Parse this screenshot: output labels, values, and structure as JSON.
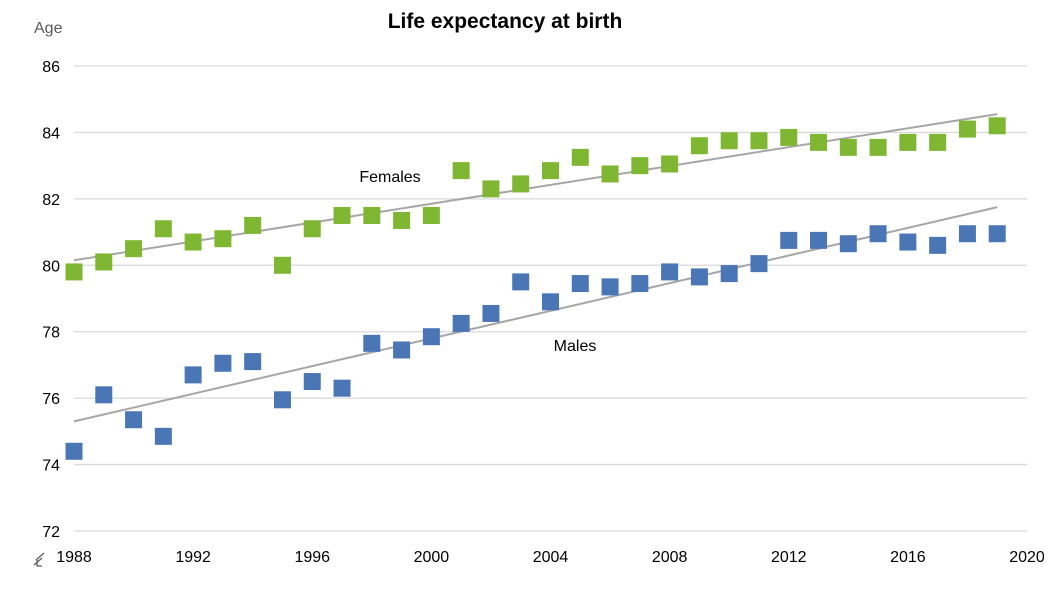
{
  "chart_data": {
    "type": "scatter",
    "title": "Life expectancy at birth",
    "ylabel": "Age",
    "xlabel": "",
    "xlim": [
      1988,
      2020
    ],
    "ylim": [
      72,
      86
    ],
    "x_ticks": [
      "1988",
      "1992",
      "1996",
      "2000",
      "2004",
      "2008",
      "2012",
      "2016",
      "2020"
    ],
    "y_ticks": [
      "72",
      "74",
      "76",
      "78",
      "80",
      "82",
      "84",
      "86"
    ],
    "grid": "horizontal",
    "x": [
      1988,
      1989,
      1990,
      1991,
      1992,
      1993,
      1994,
      1995,
      1996,
      1997,
      1998,
      1999,
      2000,
      2001,
      2002,
      2003,
      2004,
      2005,
      2006,
      2007,
      2008,
      2009,
      2010,
      2011,
      2012,
      2013,
      2014,
      2015,
      2016,
      2017,
      2018,
      2019
    ],
    "series": [
      {
        "name": "Females",
        "color": "#7FB733",
        "values": [
          79.8,
          80.1,
          80.5,
          81.1,
          80.7,
          80.8,
          81.2,
          80.0,
          81.1,
          81.5,
          81.5,
          81.35,
          81.5,
          82.85,
          82.3,
          82.45,
          82.85,
          83.25,
          82.75,
          83.0,
          83.05,
          83.6,
          83.75,
          83.75,
          83.85,
          83.7,
          83.55,
          83.55,
          83.7,
          83.7,
          84.1,
          84.2
        ],
        "trend": [
          80.15,
          84.55
        ]
      },
      {
        "name": "Males",
        "color": "#4A76B6",
        "values": [
          74.4,
          76.1,
          75.35,
          74.85,
          76.7,
          77.05,
          77.1,
          75.95,
          76.5,
          76.3,
          77.65,
          77.45,
          77.85,
          78.25,
          78.55,
          79.5,
          78.9,
          79.45,
          79.35,
          79.45,
          79.8,
          79.65,
          79.75,
          80.05,
          80.75,
          80.75,
          80.65,
          80.95,
          80.7,
          80.6,
          80.95,
          80.95
        ],
        "trend": [
          75.3,
          81.75
        ]
      }
    ],
    "annotations": [
      "Females",
      "Males"
    ],
    "trend_color": "#A6A6A6"
  }
}
